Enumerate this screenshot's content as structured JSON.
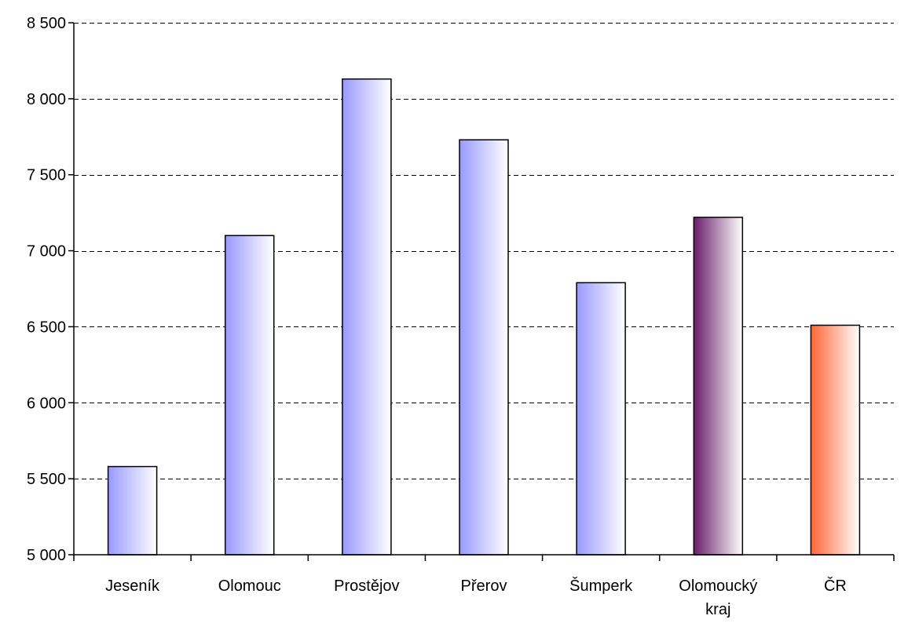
{
  "chart_data": {
    "type": "bar",
    "categories": [
      [
        "Jeseník"
      ],
      [
        "Olomouc"
      ],
      [
        "Prostějov"
      ],
      [
        "Přerov"
      ],
      [
        "Šumperk"
      ],
      [
        "Olomoucký",
        "kraj"
      ],
      [
        "ČR"
      ]
    ],
    "values": [
      5580,
      7100,
      8130,
      7730,
      6790,
      7220,
      6510
    ],
    "title": "",
    "xlabel": "",
    "ylabel": "",
    "ylim": [
      5000,
      8500
    ],
    "yticks": [
      5000,
      5500,
      6000,
      6500,
      7000,
      7500,
      8000,
      8500
    ],
    "ytick_labels": [
      "5 000",
      "5 500",
      "6 000",
      "6 500",
      "7 000",
      "7 500",
      "8 000",
      "8 500"
    ],
    "grid": "horizontal dashed",
    "legend": "none",
    "bar_gradients": [
      [
        "#9999ff",
        "#ffffff"
      ],
      [
        "#9999ff",
        "#ffffff"
      ],
      [
        "#9999ff",
        "#ffffff"
      ],
      [
        "#9999ff",
        "#ffffff"
      ],
      [
        "#9999ff",
        "#ffffff"
      ],
      [
        "#6b1d6b",
        "#ffffff"
      ],
      [
        "#ff6633",
        "#ffffff"
      ]
    ]
  }
}
